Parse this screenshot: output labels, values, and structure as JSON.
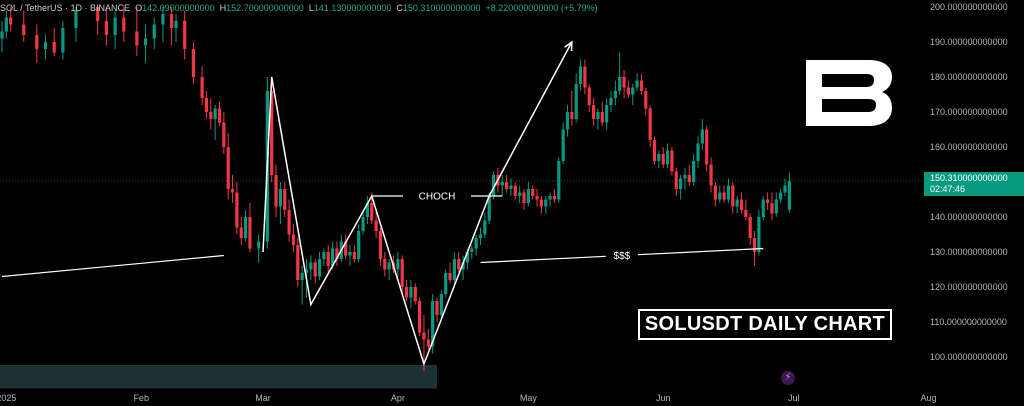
{
  "header": {
    "symbol": "SOL / TetherUS · 1D · BINANCE",
    "open_label": "O",
    "open_value": "142.09000000000",
    "high_label": "H",
    "high_value": "152.700000000000",
    "low_label": "L",
    "low_value": "141.130000000000",
    "close_label": "C",
    "close_value": "150.310000000000",
    "change": "+8.220000000000 (+5.79%)"
  },
  "chart_title": "SOLUSDT DAILY CHART",
  "logo_letter": "B",
  "current_price": {
    "value": "150.310000000000",
    "countdown": "02:47:46"
  },
  "annotations": {
    "choch": "CHOCH",
    "liquidity": "$$$"
  },
  "colors": {
    "background": "#000000",
    "up": "#089981",
    "down": "#f23645",
    "axis_text": "#b2b5be",
    "drawing": "#ffffff",
    "price_tag": "#089981",
    "zone": "#1e3236"
  },
  "icons": {
    "alert": "lightning-bolt-icon"
  },
  "chart_data": {
    "type": "candlestick",
    "symbol": "SOLUSDT",
    "interval": "1D",
    "ylim": [
      95,
      200
    ],
    "y_ticks": [
      100,
      110,
      120,
      130,
      140,
      150,
      160,
      170,
      180,
      190,
      200
    ],
    "y_tick_labels": [
      "100.000000000000",
      "110.000000000000",
      "120.000000000000",
      "130.000000000000",
      "140.000000000000",
      "150.000000000000",
      "160.000000000000",
      "170.000000000000",
      "180.000000000000",
      "190.000000000000",
      "200.000000000000"
    ],
    "x_ticks": [
      "2025-01-01",
      "2025-02-01",
      "2025-03-01",
      "2025-04-01",
      "2025-05-01",
      "2025-06-01",
      "2025-07-01",
      "2025-08-01"
    ],
    "x_tick_labels": [
      "2025",
      "Feb",
      "Mar",
      "Apr",
      "May",
      "Jun",
      "Jul",
      "Aug"
    ],
    "candles": [
      [
        "2024-12-31",
        191,
        196,
        187,
        193
      ],
      [
        "2025-01-01",
        193,
        199,
        191,
        197
      ],
      [
        "2025-01-02",
        197,
        200,
        193,
        195
      ],
      [
        "2025-01-05",
        195,
        199,
        190,
        192
      ],
      [
        "2025-01-08",
        192,
        195,
        184,
        188
      ],
      [
        "2025-01-10",
        188,
        192,
        185,
        190
      ],
      [
        "2025-01-12",
        190,
        194,
        186,
        187
      ],
      [
        "2025-01-14",
        187,
        196,
        185,
        194
      ],
      [
        "2025-01-17",
        194,
        200,
        190,
        199
      ],
      [
        "2025-01-22",
        200,
        200,
        192,
        196
      ],
      [
        "2025-01-24",
        196,
        200,
        189,
        192
      ],
      [
        "2025-01-26",
        192,
        199,
        188,
        197
      ],
      [
        "2025-01-28",
        197,
        200,
        190,
        193
      ],
      [
        "2025-01-31",
        193,
        200,
        186,
        189
      ],
      [
        "2025-02-02",
        189,
        195,
        184,
        191
      ],
      [
        "2025-02-04",
        191,
        197,
        188,
        195
      ],
      [
        "2025-02-06",
        195,
        200,
        190,
        198
      ],
      [
        "2025-02-08",
        198,
        200,
        189,
        194
      ],
      [
        "2025-02-09",
        194,
        198,
        190,
        196
      ],
      [
        "2025-02-11",
        196,
        199,
        185,
        188
      ],
      [
        "2025-02-13",
        188,
        190,
        178,
        180
      ],
      [
        "2025-02-15",
        180,
        183,
        172,
        174
      ],
      [
        "2025-02-16",
        174,
        176,
        168,
        170
      ],
      [
        "2025-02-17",
        170,
        174,
        165,
        168
      ],
      [
        "2025-02-18",
        168,
        172,
        162,
        171
      ],
      [
        "2025-02-19",
        171,
        173,
        166,
        167
      ],
      [
        "2025-02-20",
        167,
        170,
        158,
        160
      ],
      [
        "2025-02-21",
        160,
        164,
        145,
        148
      ],
      [
        "2025-02-22",
        148,
        152,
        144,
        147
      ],
      [
        "2025-02-23",
        147,
        150,
        135,
        137
      ],
      [
        "2025-02-24",
        137,
        140,
        132,
        134
      ],
      [
        "2025-02-25",
        134,
        142,
        133,
        140
      ],
      [
        "2025-02-26",
        140,
        144,
        130,
        131
      ],
      [
        "2025-02-28",
        131,
        135,
        127,
        133
      ],
      [
        "2025-03-02",
        133,
        180,
        131,
        176
      ],
      [
        "2025-03-03",
        176,
        178,
        150,
        152
      ],
      [
        "2025-03-04",
        152,
        155,
        140,
        143
      ],
      [
        "2025-03-05",
        143,
        150,
        138,
        148
      ],
      [
        "2025-03-06",
        148,
        150,
        140,
        142
      ],
      [
        "2025-03-07",
        142,
        145,
        133,
        135
      ],
      [
        "2025-03-08",
        135,
        138,
        130,
        132
      ],
      [
        "2025-03-09",
        132,
        134,
        120,
        122
      ],
      [
        "2025-03-10",
        122,
        126,
        115,
        124
      ],
      [
        "2025-03-11",
        124,
        128,
        117,
        125
      ],
      [
        "2025-03-12",
        125,
        129,
        122,
        127
      ],
      [
        "2025-03-13",
        127,
        128,
        121,
        123
      ],
      [
        "2025-03-14",
        123,
        130,
        122,
        128
      ],
      [
        "2025-03-15",
        128,
        131,
        126,
        130
      ],
      [
        "2025-03-16",
        130,
        132,
        124,
        126
      ],
      [
        "2025-03-17",
        126,
        133,
        125,
        131
      ],
      [
        "2025-03-18",
        131,
        133,
        126,
        128
      ],
      [
        "2025-03-19",
        128,
        135,
        127,
        133
      ],
      [
        "2025-03-20",
        133,
        135,
        128,
        129
      ],
      [
        "2025-03-21",
        129,
        132,
        126,
        130
      ],
      [
        "2025-03-22",
        130,
        132,
        127,
        128
      ],
      [
        "2025-03-23",
        128,
        138,
        127,
        136
      ],
      [
        "2025-03-24",
        136,
        142,
        135,
        140
      ],
      [
        "2025-03-25",
        140,
        146,
        138,
        144
      ],
      [
        "2025-03-26",
        144,
        147,
        138,
        139
      ],
      [
        "2025-03-27",
        139,
        142,
        134,
        136
      ],
      [
        "2025-03-28",
        136,
        137,
        126,
        128
      ],
      [
        "2025-03-29",
        128,
        130,
        123,
        125
      ],
      [
        "2025-03-30",
        125,
        128,
        122,
        127
      ],
      [
        "2025-03-31",
        127,
        129,
        124,
        125
      ],
      [
        "2025-04-01",
        125,
        130,
        123,
        128
      ],
      [
        "2025-04-02",
        128,
        129,
        118,
        120
      ],
      [
        "2025-04-03",
        120,
        122,
        116,
        117
      ],
      [
        "2025-04-04",
        117,
        122,
        114,
        120
      ],
      [
        "2025-04-05",
        120,
        121,
        115,
        116
      ],
      [
        "2025-04-06",
        116,
        117,
        106,
        107
      ],
      [
        "2025-04-07",
        107,
        112,
        96,
        105
      ],
      [
        "2025-04-08",
        105,
        108,
        102,
        103
      ],
      [
        "2025-04-09",
        103,
        118,
        101,
        116
      ],
      [
        "2025-04-10",
        116,
        117,
        110,
        112
      ],
      [
        "2025-04-11",
        112,
        119,
        111,
        118
      ],
      [
        "2025-04-12",
        118,
        125,
        117,
        124
      ],
      [
        "2025-04-13",
        124,
        127,
        121,
        122
      ],
      [
        "2025-04-14",
        122,
        130,
        121,
        128
      ],
      [
        "2025-04-15",
        128,
        130,
        124,
        125
      ],
      [
        "2025-04-16",
        125,
        129,
        122,
        127
      ],
      [
        "2025-04-17",
        127,
        131,
        125,
        130
      ],
      [
        "2025-04-18",
        130,
        132,
        128,
        131
      ],
      [
        "2025-04-19",
        131,
        135,
        129,
        134
      ],
      [
        "2025-04-20",
        134,
        137,
        132,
        135
      ],
      [
        "2025-04-21",
        135,
        141,
        134,
        139
      ],
      [
        "2025-04-22",
        139,
        147,
        138,
        146
      ],
      [
        "2025-04-23",
        146,
        153,
        145,
        152
      ],
      [
        "2025-04-24",
        152,
        154,
        147,
        149
      ],
      [
        "2025-04-25",
        149,
        152,
        146,
        150
      ],
      [
        "2025-04-26",
        150,
        152,
        147,
        148
      ],
      [
        "2025-04-27",
        148,
        151,
        146,
        149
      ],
      [
        "2025-04-28",
        149,
        150,
        145,
        146
      ],
      [
        "2025-04-29",
        146,
        149,
        144,
        147
      ],
      [
        "2025-04-30",
        147,
        148,
        142,
        144
      ],
      [
        "2025-05-01",
        144,
        150,
        143,
        148
      ],
      [
        "2025-05-02",
        148,
        149,
        145,
        146
      ],
      [
        "2025-05-03",
        146,
        148,
        143,
        145
      ],
      [
        "2025-05-04",
        145,
        146,
        141,
        143
      ],
      [
        "2025-05-05",
        143,
        146,
        141,
        145
      ],
      [
        "2025-05-06",
        145,
        147,
        143,
        146
      ],
      [
        "2025-05-07",
        146,
        148,
        144,
        145
      ],
      [
        "2025-05-08",
        145,
        157,
        144,
        156
      ],
      [
        "2025-05-09",
        156,
        167,
        155,
        165
      ],
      [
        "2025-05-10",
        165,
        172,
        163,
        170
      ],
      [
        "2025-05-11",
        170,
        176,
        166,
        168
      ],
      [
        "2025-05-12",
        168,
        181,
        167,
        178
      ],
      [
        "2025-05-13",
        178,
        185,
        176,
        183
      ],
      [
        "2025-05-14",
        183,
        185,
        175,
        177
      ],
      [
        "2025-05-15",
        177,
        178,
        170,
        172
      ],
      [
        "2025-05-16",
        172,
        174,
        166,
        168
      ],
      [
        "2025-05-17",
        168,
        171,
        165,
        170
      ],
      [
        "2025-05-18",
        170,
        173,
        166,
        167
      ],
      [
        "2025-05-19",
        167,
        174,
        165,
        172
      ],
      [
        "2025-05-20",
        172,
        176,
        170,
        174
      ],
      [
        "2025-05-21",
        174,
        179,
        172,
        176
      ],
      [
        "2025-05-22",
        176,
        187,
        175,
        180
      ],
      [
        "2025-05-23",
        180,
        182,
        174,
        177
      ],
      [
        "2025-05-24",
        177,
        179,
        174,
        175
      ],
      [
        "2025-05-25",
        175,
        178,
        172,
        177
      ],
      [
        "2025-05-26",
        177,
        181,
        176,
        179
      ],
      [
        "2025-05-27",
        179,
        181,
        175,
        176
      ],
      [
        "2025-05-28",
        176,
        177,
        169,
        171
      ],
      [
        "2025-05-29",
        171,
        172,
        160,
        162
      ],
      [
        "2025-05-30",
        162,
        163,
        155,
        156
      ],
      [
        "2025-05-31",
        156,
        159,
        154,
        158
      ],
      [
        "2025-06-01",
        158,
        160,
        154,
        155
      ],
      [
        "2025-06-02",
        155,
        161,
        154,
        159
      ],
      [
        "2025-06-03",
        159,
        160,
        152,
        153
      ],
      [
        "2025-06-04",
        153,
        154,
        146,
        148
      ],
      [
        "2025-06-05",
        148,
        152,
        145,
        151
      ],
      [
        "2025-06-06",
        151,
        154,
        148,
        152
      ],
      [
        "2025-06-07",
        152,
        155,
        149,
        150
      ],
      [
        "2025-06-08",
        150,
        158,
        149,
        156
      ],
      [
        "2025-06-09",
        156,
        163,
        154,
        161
      ],
      [
        "2025-06-10",
        161,
        168,
        159,
        165
      ],
      [
        "2025-06-11",
        165,
        166,
        153,
        155
      ],
      [
        "2025-06-12",
        155,
        157,
        147,
        149
      ],
      [
        "2025-06-13",
        149,
        150,
        143,
        145
      ],
      [
        "2025-06-14",
        145,
        149,
        144,
        147
      ],
      [
        "2025-06-15",
        147,
        149,
        144,
        145
      ],
      [
        "2025-06-16",
        145,
        151,
        144,
        149
      ],
      [
        "2025-06-17",
        149,
        150,
        141,
        143
      ],
      [
        "2025-06-18",
        143,
        146,
        141,
        145
      ],
      [
        "2025-06-19",
        145,
        147,
        141,
        142
      ],
      [
        "2025-06-20",
        142,
        145,
        139,
        140
      ],
      [
        "2025-06-21",
        140,
        141,
        132,
        134
      ],
      [
        "2025-06-22",
        134,
        136,
        126,
        130
      ],
      [
        "2025-06-23",
        130,
        142,
        129,
        140
      ],
      [
        "2025-06-24",
        140,
        146,
        139,
        145
      ],
      [
        "2025-06-25",
        145,
        147,
        142,
        144
      ],
      [
        "2025-06-26",
        144,
        147,
        139,
        141
      ],
      [
        "2025-06-27",
        141,
        147,
        140,
        145
      ],
      [
        "2025-06-28",
        145,
        148,
        144,
        147
      ],
      [
        "2025-06-29",
        147,
        151,
        146,
        149
      ],
      [
        "2025-06-30",
        142.09,
        152.7,
        141.13,
        150.31
      ]
    ],
    "drawings": {
      "zigzag": [
        [
          "2025-03-01",
          130
        ],
        [
          "2025-03-03",
          180
        ],
        [
          "2025-03-12",
          115
        ],
        [
          "2025-03-26",
          146
        ],
        [
          "2025-04-07",
          98
        ],
        [
          "2025-04-22",
          146
        ],
        [
          "2025-05-11",
          190
        ]
      ],
      "choch_level": 146,
      "choch_from": "2025-03-26",
      "choch_to": "2025-04-25",
      "liquidity_line": [
        [
          "2025-04-20",
          127
        ],
        [
          "2025-06-24",
          131
        ]
      ],
      "trend_line": [
        [
          "2024-12-31",
          123
        ],
        [
          "2025-02-20",
          129
        ]
      ],
      "zone": {
        "x0": "2024-12-31",
        "x1": "2025-04-10",
        "y0": 95,
        "y1": 100
      }
    },
    "last_price": 150.31
  }
}
